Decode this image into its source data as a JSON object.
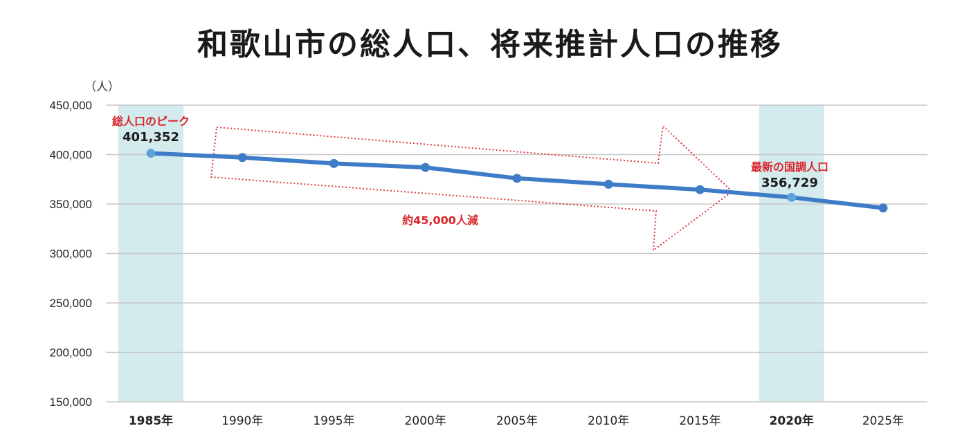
{
  "chart_data": {
    "type": "line",
    "title": "和歌山市の総人口、将来推計人口の推移",
    "ylabel": "（人）",
    "xlabel": "",
    "categories": [
      "1985年",
      "1990年",
      "1995年",
      "2000年",
      "2005年",
      "2010年",
      "2015年",
      "2020年",
      "2025年"
    ],
    "highlighted_categories": [
      "1985年",
      "2020年"
    ],
    "series": [
      {
        "values": [
          401352,
          397000,
          391000,
          387000,
          376000,
          370000,
          364500,
          356729,
          346000
        ]
      }
    ],
    "ylim": [
      150000,
      450000
    ],
    "yticks": [
      "450,000",
      "400,000",
      "350,000",
      "300,000",
      "250,000",
      "200,000",
      "150,000"
    ],
    "grid": true,
    "annotations": {
      "peak_label": "総人口のピーク",
      "peak_value": "401,352",
      "latest_label": "最新の国調人口",
      "latest_value": "356,729",
      "decline_label": "約45,000人減"
    },
    "colors": {
      "line": "#3f7cc8",
      "point_highlight": "#5ea3dc",
      "highlight_band": "#d4ebee",
      "grid": "#c8c8c8",
      "arrow": "#e0363a",
      "annotation_text": "#d9262b"
    }
  }
}
